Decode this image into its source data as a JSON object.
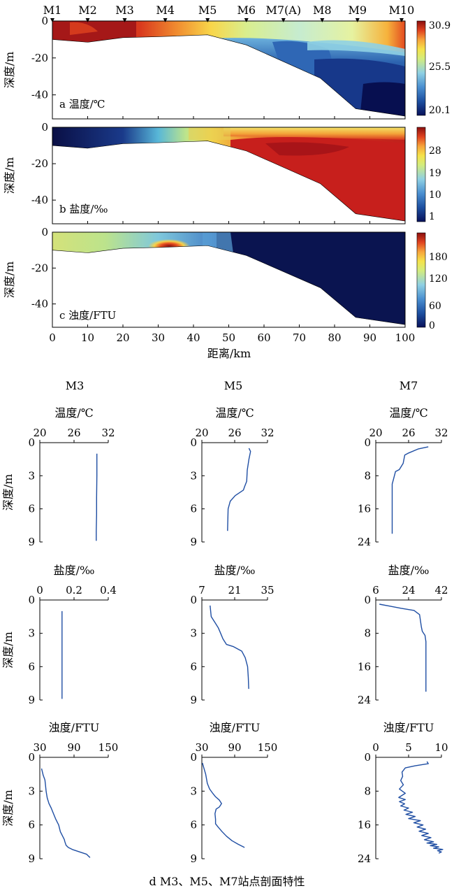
{
  "stations": {
    "labels": [
      "M1",
      "M2",
      "M3",
      "M4",
      "M5",
      "M6",
      "M7(A)",
      "M8",
      "M9",
      "M10"
    ],
    "distance_km": [
      0,
      10,
      20.5,
      32,
      44,
      55,
      65.5,
      76.5,
      86.5,
      99
    ]
  },
  "sections": {
    "x_label": "距离/km",
    "x_ticks": [
      0,
      10,
      20,
      30,
      40,
      50,
      60,
      70,
      80,
      90,
      100
    ],
    "y_label": "深度/m",
    "y_ticks": [
      0,
      -20,
      -40
    ],
    "bottom_profile_km": [
      0,
      10,
      20,
      30,
      44,
      55,
      76,
      86,
      100
    ],
    "bottom_profile_depth_m": [
      -10,
      -11.5,
      -9,
      -8.5,
      -7.5,
      -13,
      -31,
      -47.5,
      -51.5
    ],
    "panels": [
      {
        "id": "temperature",
        "label": "a 温度/℃",
        "colorbar_ticks": [
          "30.9",
          "25.5",
          "20.1"
        ]
      },
      {
        "id": "salinity",
        "label": "b 盐度/‰",
        "colorbar_ticks": [
          "28",
          "19",
          "10",
          "1"
        ]
      },
      {
        "id": "turbidity",
        "label": "c 浊度/FTU",
        "colorbar_ticks": [
          "180",
          "120",
          "60",
          "0"
        ]
      }
    ]
  },
  "chart_data": [
    {
      "type": "line",
      "station": "M3",
      "title": "M3",
      "xlabel": "温度/℃",
      "ylabel": "深度/m",
      "x_ticks": [
        "20",
        "26",
        "32"
      ],
      "y_ticks": [
        "0",
        "3",
        "6",
        "9"
      ],
      "xlim": [
        20,
        32
      ],
      "ylim": [
        0,
        9
      ],
      "x": [
        30.0,
        30.0,
        29.95,
        29.95,
        29.9,
        29.9
      ],
      "y": [
        1.0,
        3.0,
        5.0,
        6.5,
        8.0,
        8.9
      ]
    },
    {
      "type": "line",
      "station": "M5",
      "title": "M5",
      "xlabel": "温度/℃",
      "ylabel": "深度/m",
      "x_ticks": [
        "20",
        "26",
        "32"
      ],
      "y_ticks": [
        "0",
        "3",
        "6",
        "9"
      ],
      "xlim": [
        20,
        32
      ],
      "ylim": [
        0,
        9
      ],
      "x": [
        28.6,
        28.9,
        28.6,
        28.3,
        28.2,
        27.8,
        27.6,
        26.1,
        25.2,
        24.8,
        24.7
      ],
      "y": [
        0.5,
        0.8,
        1.5,
        2.5,
        3.5,
        4.0,
        4.3,
        4.8,
        5.3,
        6.0,
        8.0
      ]
    },
    {
      "type": "line",
      "station": "M7",
      "title": "M7",
      "xlabel": "温度/℃",
      "ylabel": "深度/m",
      "x_ticks": [
        "20",
        "26",
        "32"
      ],
      "y_ticks": [
        "0",
        "8",
        "16",
        "24"
      ],
      "xlim": [
        20,
        32
      ],
      "ylim": [
        0,
        24
      ],
      "x": [
        29.6,
        27.8,
        26.0,
        25.3,
        25.0,
        24.3,
        23.6,
        23.2,
        23.0,
        23.0,
        23.0,
        23.0
      ],
      "y": [
        1.0,
        1.5,
        2.5,
        3.0,
        5.0,
        6.5,
        7.0,
        9.0,
        10.0,
        14.0,
        18.0,
        22.0
      ]
    },
    {
      "type": "line",
      "station": "M3",
      "xlabel": "盐度/‰",
      "ylabel": "深度/m",
      "x_ticks": [
        "0",
        "0.2",
        "0.4"
      ],
      "y_ticks": [
        "0",
        "3",
        "6",
        "9"
      ],
      "xlim": [
        0,
        0.4
      ],
      "ylim": [
        0,
        9
      ],
      "x": [
        0.13,
        0.13,
        0.13,
        0.13
      ],
      "y": [
        1.0,
        3.0,
        6.0,
        8.9
      ]
    },
    {
      "type": "line",
      "station": "M5",
      "xlabel": "盐度/‰",
      "ylabel": "深度/m",
      "x_ticks": [
        "7",
        "21",
        "35"
      ],
      "y_ticks": [
        "0",
        "3",
        "6",
        "9"
      ],
      "xlim": [
        7,
        35
      ],
      "ylim": [
        0,
        9
      ],
      "x": [
        10.5,
        11.0,
        12.5,
        14.0,
        15.0,
        16.0,
        17.5,
        20.5,
        24.0,
        25.5,
        26.5,
        26.8,
        27.0
      ],
      "y": [
        0.5,
        1.5,
        2.0,
        2.5,
        3.0,
        3.5,
        4.0,
        4.2,
        4.6,
        5.2,
        6.0,
        7.0,
        8.0
      ]
    },
    {
      "type": "line",
      "station": "M7",
      "xlabel": "盐度/‰",
      "ylabel": "深度/m",
      "x_ticks": [
        "6",
        "24",
        "42"
      ],
      "y_ticks": [
        "0",
        "8",
        "16",
        "24"
      ],
      "xlim": [
        6,
        42
      ],
      "ylim": [
        0,
        24
      ],
      "x": [
        8.0,
        14.0,
        20.0,
        27.0,
        30.0,
        30.5,
        31.0,
        31.5,
        33.0,
        33.5,
        33.5,
        33.5,
        33.5
      ],
      "y": [
        1.0,
        1.5,
        2.0,
        2.5,
        3.5,
        5.0,
        6.5,
        7.5,
        8.5,
        10.0,
        14.0,
        18.0,
        22.0
      ]
    },
    {
      "type": "line",
      "station": "M3",
      "xlabel": "浊度/FTU",
      "ylabel": "深度/m",
      "x_ticks": [
        "30",
        "90",
        "150"
      ],
      "y_ticks": [
        "0",
        "3",
        "6",
        "9"
      ],
      "xlim": [
        30,
        150
      ],
      "ylim": [
        0,
        9
      ],
      "x": [
        33,
        36,
        39,
        40,
        41,
        42,
        43,
        46,
        50,
        54,
        58,
        63,
        66,
        70,
        73,
        74,
        76,
        80,
        88,
        100,
        112,
        118
      ],
      "y": [
        1.0,
        1.6,
        2.0,
        2.5,
        3.0,
        3.3,
        3.6,
        4.1,
        4.5,
        5.0,
        5.5,
        6.0,
        6.6,
        7.0,
        7.3,
        7.5,
        7.8,
        8.0,
        8.2,
        8.4,
        8.6,
        8.9
      ]
    },
    {
      "type": "line",
      "station": "M5",
      "xlabel": "浊度/FTU",
      "ylabel": "深度/m",
      "x_ticks": [
        "30",
        "90",
        "150"
      ],
      "y_ticks": [
        "0",
        "3",
        "6",
        "9"
      ],
      "xlim": [
        30,
        150
      ],
      "ylim": [
        0,
        9
      ],
      "x": [
        31,
        34,
        37,
        40,
        44,
        50,
        55,
        62,
        66,
        62,
        56,
        54,
        55,
        55,
        60,
        67,
        75,
        85,
        96,
        108
      ],
      "y": [
        0.5,
        1.0,
        1.5,
        2.3,
        2.8,
        3.2,
        3.5,
        3.8,
        4.1,
        4.4,
        4.6,
        5.0,
        5.5,
        5.9,
        6.2,
        6.6,
        7.0,
        7.4,
        7.7,
        8.0
      ]
    },
    {
      "type": "line",
      "station": "M7",
      "xlabel": "浊度/FTU",
      "ylabel": "深度/m",
      "x_ticks": [
        "0",
        "5",
        "10"
      ],
      "y_ticks": [
        "0",
        "8",
        "16",
        "24"
      ],
      "xlim": [
        0,
        10
      ],
      "ylim": [
        0,
        24
      ],
      "x": [
        7.8,
        8.0,
        6.0,
        4.5,
        4.0,
        4.1,
        3.8,
        4.2,
        3.6,
        4.5,
        3.5,
        4.5,
        3.6,
        4.4,
        3.8,
        5.0,
        4.3,
        5.6,
        4.6,
        6.0,
        5.0,
        6.8,
        5.8,
        7.2,
        6.3,
        7.6,
        6.6,
        8.0,
        7.0,
        8.4,
        7.4,
        8.8,
        7.8,
        9.3,
        8.3,
        9.6,
        8.8,
        10.2,
        9.4,
        10.0,
        9.6
      ],
      "y": [
        1.0,
        1.5,
        2.0,
        2.5,
        3.5,
        4.5,
        5.5,
        6.5,
        7.5,
        8.5,
        9.5,
        10.0,
        10.5,
        11.0,
        11.5,
        12.0,
        12.5,
        13.0,
        13.5,
        14.0,
        14.5,
        15.0,
        15.5,
        16.0,
        16.5,
        17.0,
        17.5,
        18.0,
        18.5,
        19.0,
        19.5,
        20.0,
        20.3,
        20.6,
        20.9,
        21.2,
        21.5,
        21.8,
        22.1,
        22.4,
        22.7
      ]
    }
  ],
  "caption": "d  M3、M5、M7站点剖面特性"
}
